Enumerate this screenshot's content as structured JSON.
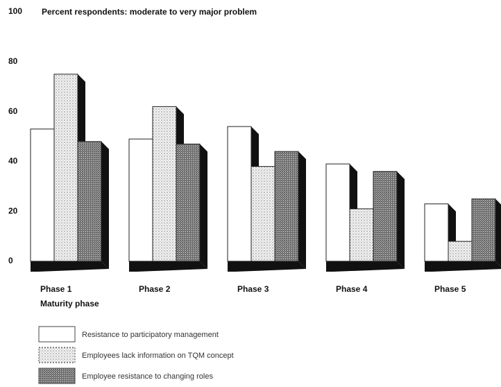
{
  "chart_data": {
    "type": "bar3d",
    "title": "Percent respondents: moderate to very major problem",
    "x_label": "Maturity phase",
    "categories": [
      "Phase 1",
      "Phase 2",
      "Phase 3",
      "Phase 4",
      "Phase 5"
    ],
    "series": [
      {
        "name": "Resistance to participatory management",
        "color": "#ffffff",
        "values": [
          53,
          49,
          54,
          39,
          23
        ]
      },
      {
        "name": "Employees lack information on TQM concept",
        "color": "#f2f2f2",
        "values": [
          75,
          62,
          38,
          21,
          8
        ]
      },
      {
        "name": "Employee resistance to changing roles",
        "color": "#6a6a6a",
        "values": [
          48,
          47,
          44,
          36,
          25
        ]
      }
    ],
    "ylim": [
      0,
      100
    ],
    "yticks": [
      0,
      20,
      40,
      60,
      80,
      100
    ],
    "legend": "bottom-left"
  }
}
